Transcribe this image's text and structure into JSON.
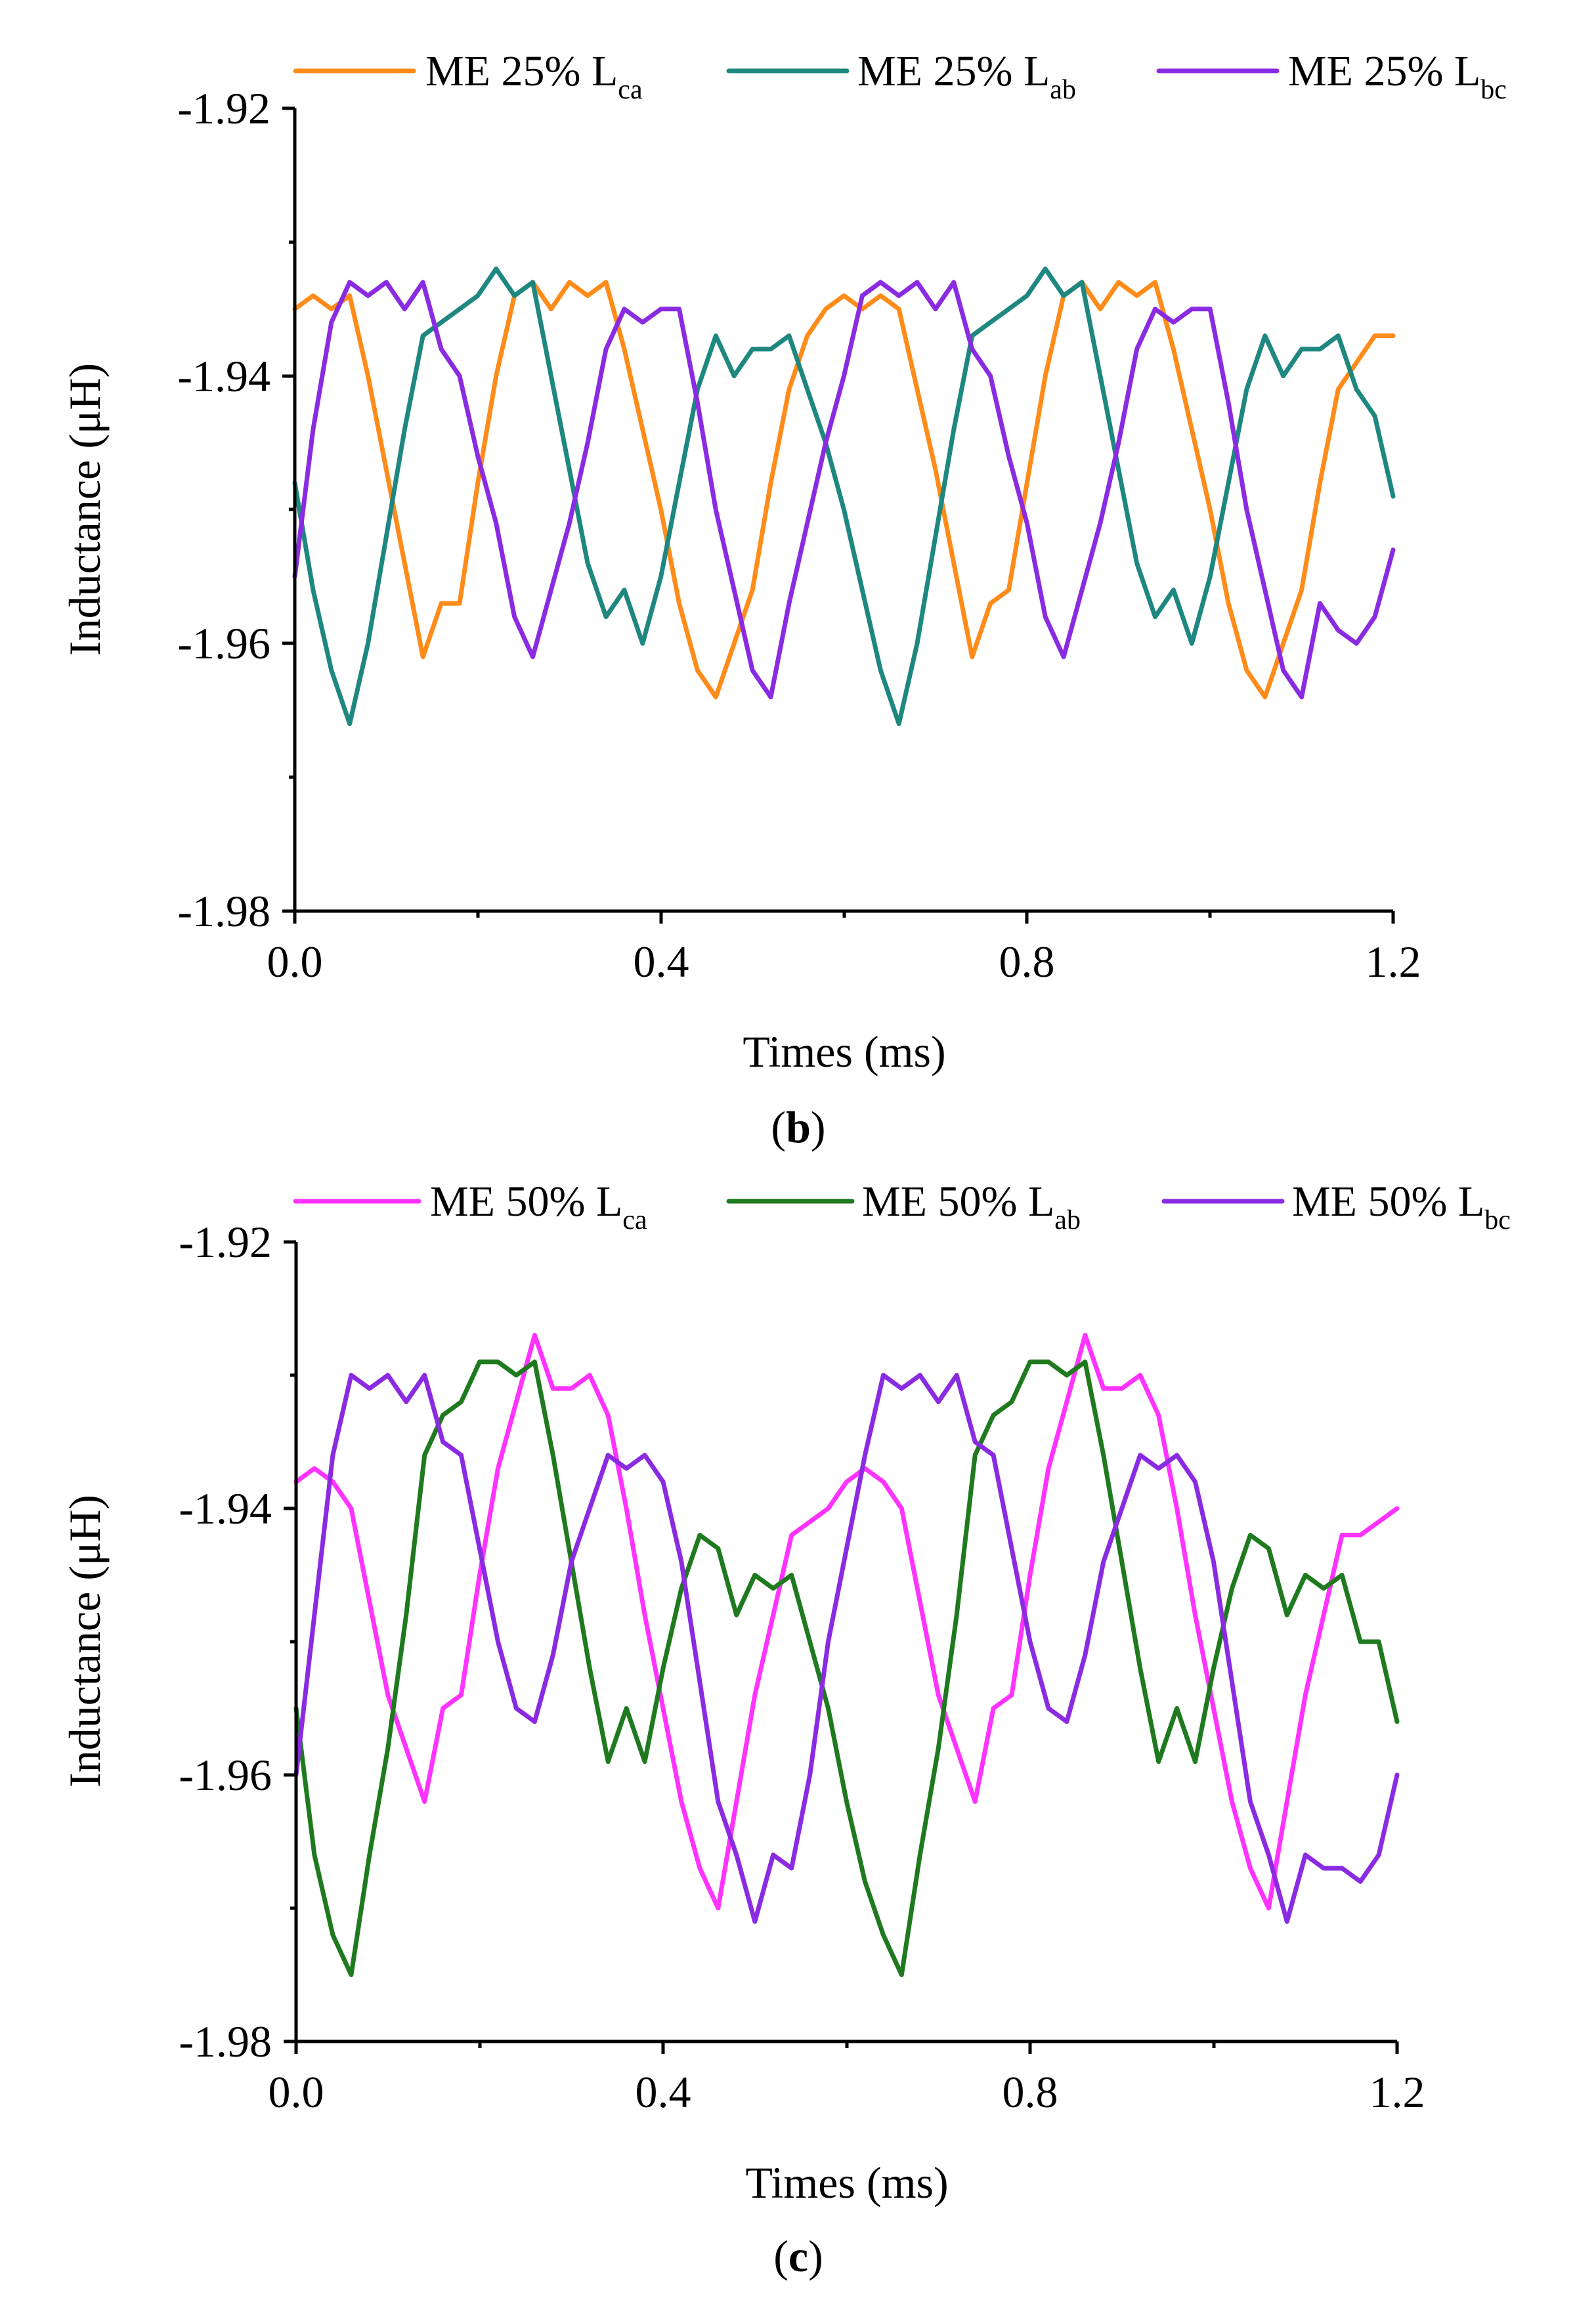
{
  "chart_data": [
    {
      "type": "line",
      "panel_caption": "b",
      "xlabel": "Times (ms)",
      "ylabel": "Inductance (μH)",
      "xlim": [
        0.0,
        1.2
      ],
      "ylim": [
        -1.98,
        -1.92
      ],
      "xticks": [
        0.0,
        0.4,
        0.8,
        1.2
      ],
      "xtick_labels": [
        "0.0",
        "0.4",
        "0.8",
        "1.2"
      ],
      "yticks": [
        -1.92,
        -1.94,
        -1.96,
        -1.98
      ],
      "ytick_labels": [
        "-1.92",
        "-1.94",
        "-1.96",
        "-1.98"
      ],
      "legend_position": "top",
      "series": [
        {
          "label": "ME 25% L",
          "subscript": "ca",
          "color": "#FF8C1A",
          "x": [
            0,
            0.02,
            0.04,
            0.06,
            0.08,
            0.1,
            0.12,
            0.14,
            0.16,
            0.18,
            0.2,
            0.22,
            0.24,
            0.26,
            0.28,
            0.3,
            0.32,
            0.34,
            0.36,
            0.38,
            0.4,
            0.42,
            0.44,
            0.46,
            0.48,
            0.5,
            0.52,
            0.54,
            0.56,
            0.58,
            0.6,
            0.62,
            0.64,
            0.66,
            0.68,
            0.7,
            0.72,
            0.74,
            0.76,
            0.78,
            0.8,
            0.82,
            0.84,
            0.86,
            0.88,
            0.9,
            0.92,
            0.94,
            0.96,
            0.98,
            1.0,
            1.02,
            1.04,
            1.06,
            1.08,
            1.1,
            1.12,
            1.14,
            1.16,
            1.18,
            1.2
          ],
          "y": [
            -1.935,
            -1.934,
            -1.935,
            -1.934,
            -1.94,
            -1.947,
            -1.954,
            -1.961,
            -1.957,
            -1.957,
            -1.948,
            -1.94,
            -1.934,
            -1.933,
            -1.935,
            -1.933,
            -1.934,
            -1.933,
            -1.938,
            -1.944,
            -1.95,
            -1.957,
            -1.962,
            -1.964,
            -1.96,
            -1.956,
            -1.948,
            -1.941,
            -1.937,
            -1.935,
            -1.934,
            -1.935,
            -1.934,
            -1.935,
            -1.941,
            -1.947,
            -1.954,
            -1.961,
            -1.957,
            -1.956,
            -1.948,
            -1.94,
            -1.934,
            -1.933,
            -1.935,
            -1.933,
            -1.934,
            -1.933,
            -1.938,
            -1.944,
            -1.95,
            -1.957,
            -1.962,
            -1.964,
            -1.96,
            -1.956,
            -1.948,
            -1.941,
            -1.939,
            -1.937,
            -1.937
          ]
        },
        {
          "label": "ME 25% L",
          "subscript": "ab",
          "color": "#1E8780",
          "x": [
            0,
            0.02,
            0.04,
            0.06,
            0.08,
            0.1,
            0.12,
            0.14,
            0.16,
            0.18,
            0.2,
            0.22,
            0.24,
            0.26,
            0.28,
            0.3,
            0.32,
            0.34,
            0.36,
            0.38,
            0.4,
            0.42,
            0.44,
            0.46,
            0.48,
            0.5,
            0.52,
            0.54,
            0.56,
            0.58,
            0.6,
            0.62,
            0.64,
            0.66,
            0.68,
            0.7,
            0.72,
            0.74,
            0.76,
            0.78,
            0.8,
            0.82,
            0.84,
            0.86,
            0.88,
            0.9,
            0.92,
            0.94,
            0.96,
            0.98,
            1.0,
            1.02,
            1.04,
            1.06,
            1.08,
            1.1,
            1.12,
            1.14,
            1.16,
            1.18,
            1.2
          ],
          "y": [
            -1.948,
            -1.956,
            -1.962,
            -1.966,
            -1.96,
            -1.952,
            -1.944,
            -1.937,
            -1.936,
            -1.935,
            -1.934,
            -1.932,
            -1.934,
            -1.933,
            -1.94,
            -1.947,
            -1.954,
            -1.958,
            -1.956,
            -1.96,
            -1.955,
            -1.948,
            -1.941,
            -1.937,
            -1.94,
            -1.938,
            -1.938,
            -1.937,
            -1.941,
            -1.945,
            -1.95,
            -1.956,
            -1.962,
            -1.966,
            -1.96,
            -1.952,
            -1.944,
            -1.937,
            -1.936,
            -1.935,
            -1.934,
            -1.932,
            -1.934,
            -1.933,
            -1.94,
            -1.947,
            -1.954,
            -1.958,
            -1.956,
            -1.96,
            -1.955,
            -1.948,
            -1.941,
            -1.937,
            -1.94,
            -1.938,
            -1.938,
            -1.937,
            -1.941,
            -1.943,
            -1.949
          ]
        },
        {
          "label": "ME 25% L",
          "subscript": "bc",
          "color": "#8A2BE2",
          "x": [
            0,
            0.02,
            0.04,
            0.06,
            0.08,
            0.1,
            0.12,
            0.14,
            0.16,
            0.18,
            0.2,
            0.22,
            0.24,
            0.26,
            0.28,
            0.3,
            0.32,
            0.34,
            0.36,
            0.38,
            0.4,
            0.42,
            0.44,
            0.46,
            0.48,
            0.5,
            0.52,
            0.54,
            0.56,
            0.58,
            0.6,
            0.62,
            0.64,
            0.66,
            0.68,
            0.7,
            0.72,
            0.74,
            0.76,
            0.78,
            0.8,
            0.82,
            0.84,
            0.86,
            0.88,
            0.9,
            0.92,
            0.94,
            0.96,
            0.98,
            1.0,
            1.02,
            1.04,
            1.06,
            1.08,
            1.1,
            1.12,
            1.14,
            1.16,
            1.18,
            1.2
          ],
          "y": [
            -1.955,
            -1.944,
            -1.936,
            -1.933,
            -1.934,
            -1.933,
            -1.935,
            -1.933,
            -1.938,
            -1.94,
            -1.946,
            -1.951,
            -1.958,
            -1.961,
            -1.956,
            -1.951,
            -1.945,
            -1.938,
            -1.935,
            -1.936,
            -1.935,
            -1.935,
            -1.942,
            -1.95,
            -1.956,
            -1.962,
            -1.964,
            -1.957,
            -1.951,
            -1.945,
            -1.94,
            -1.934,
            -1.933,
            -1.934,
            -1.933,
            -1.935,
            -1.933,
            -1.938,
            -1.94,
            -1.946,
            -1.951,
            -1.958,
            -1.961,
            -1.956,
            -1.951,
            -1.945,
            -1.938,
            -1.935,
            -1.936,
            -1.935,
            -1.935,
            -1.942,
            -1.95,
            -1.956,
            -1.962,
            -1.964,
            -1.957,
            -1.959,
            -1.96,
            -1.958,
            -1.953
          ]
        }
      ]
    },
    {
      "type": "line",
      "panel_caption": "c",
      "xlabel": "Times (ms)",
      "ylabel": "Inductance (μH)",
      "xlim": [
        0.0,
        1.2
      ],
      "ylim": [
        -1.98,
        -1.92
      ],
      "xticks": [
        0.0,
        0.4,
        0.8,
        1.2
      ],
      "xtick_labels": [
        "0.0",
        "0.4",
        "0.8",
        "1.2"
      ],
      "yticks": [
        -1.92,
        -1.94,
        -1.96,
        -1.98
      ],
      "ytick_labels": [
        "-1.92",
        "-1.94",
        "-1.96",
        "-1.98"
      ],
      "legend_position": "top",
      "series": [
        {
          "label": "ME 50% L",
          "subscript": "ca",
          "color": "#FF33FF",
          "x": [
            0,
            0.02,
            0.04,
            0.06,
            0.08,
            0.1,
            0.12,
            0.14,
            0.16,
            0.18,
            0.2,
            0.22,
            0.24,
            0.26,
            0.28,
            0.3,
            0.32,
            0.34,
            0.36,
            0.38,
            0.4,
            0.42,
            0.44,
            0.46,
            0.48,
            0.5,
            0.52,
            0.54,
            0.56,
            0.58,
            0.6,
            0.62,
            0.64,
            0.66,
            0.68,
            0.7,
            0.72,
            0.74,
            0.76,
            0.78,
            0.8,
            0.82,
            0.84,
            0.86,
            0.88,
            0.9,
            0.92,
            0.94,
            0.96,
            0.98,
            1.0,
            1.02,
            1.04,
            1.06,
            1.08,
            1.1,
            1.12,
            1.14,
            1.16,
            1.18,
            1.2
          ],
          "y": [
            -1.938,
            -1.937,
            -1.938,
            -1.94,
            -1.947,
            -1.954,
            -1.958,
            -1.962,
            -1.955,
            -1.954,
            -1.945,
            -1.937,
            -1.932,
            -1.927,
            -1.931,
            -1.931,
            -1.93,
            -1.933,
            -1.94,
            -1.948,
            -1.955,
            -1.962,
            -1.967,
            -1.97,
            -1.962,
            -1.954,
            -1.948,
            -1.942,
            -1.941,
            -1.94,
            -1.938,
            -1.937,
            -1.938,
            -1.94,
            -1.947,
            -1.954,
            -1.958,
            -1.962,
            -1.955,
            -1.954,
            -1.945,
            -1.937,
            -1.932,
            -1.927,
            -1.931,
            -1.931,
            -1.93,
            -1.933,
            -1.94,
            -1.948,
            -1.955,
            -1.962,
            -1.967,
            -1.97,
            -1.962,
            -1.954,
            -1.948,
            -1.942,
            -1.942,
            -1.941,
            -1.94
          ]
        },
        {
          "label": "ME 50% L",
          "subscript": "ab",
          "color": "#1F7A1F",
          "x": [
            0,
            0.02,
            0.04,
            0.06,
            0.08,
            0.1,
            0.12,
            0.14,
            0.16,
            0.18,
            0.2,
            0.22,
            0.24,
            0.26,
            0.28,
            0.3,
            0.32,
            0.34,
            0.36,
            0.38,
            0.4,
            0.42,
            0.44,
            0.46,
            0.48,
            0.5,
            0.52,
            0.54,
            0.56,
            0.58,
            0.6,
            0.62,
            0.64,
            0.66,
            0.68,
            0.7,
            0.72,
            0.74,
            0.76,
            0.78,
            0.8,
            0.82,
            0.84,
            0.86,
            0.88,
            0.9,
            0.92,
            0.94,
            0.96,
            0.98,
            1.0,
            1.02,
            1.04,
            1.06,
            1.08,
            1.1,
            1.12,
            1.14,
            1.16,
            1.18,
            1.2
          ],
          "y": [
            -1.955,
            -1.966,
            -1.972,
            -1.975,
            -1.966,
            -1.958,
            -1.948,
            -1.936,
            -1.933,
            -1.932,
            -1.929,
            -1.929,
            -1.93,
            -1.929,
            -1.936,
            -1.944,
            -1.952,
            -1.959,
            -1.955,
            -1.959,
            -1.952,
            -1.946,
            -1.942,
            -1.943,
            -1.948,
            -1.945,
            -1.946,
            -1.945,
            -1.95,
            -1.955,
            -1.962,
            -1.968,
            -1.972,
            -1.975,
            -1.966,
            -1.958,
            -1.948,
            -1.936,
            -1.933,
            -1.932,
            -1.929,
            -1.929,
            -1.93,
            -1.929,
            -1.936,
            -1.944,
            -1.952,
            -1.959,
            -1.955,
            -1.959,
            -1.952,
            -1.946,
            -1.942,
            -1.943,
            -1.948,
            -1.945,
            -1.946,
            -1.945,
            -1.95,
            -1.95,
            -1.956
          ]
        },
        {
          "label": "ME 50% L",
          "subscript": "bc",
          "color": "#8A2BE2",
          "x": [
            0,
            0.02,
            0.04,
            0.06,
            0.08,
            0.1,
            0.12,
            0.14,
            0.16,
            0.18,
            0.2,
            0.22,
            0.24,
            0.26,
            0.28,
            0.3,
            0.32,
            0.34,
            0.36,
            0.38,
            0.4,
            0.42,
            0.44,
            0.46,
            0.48,
            0.5,
            0.52,
            0.54,
            0.56,
            0.58,
            0.6,
            0.62,
            0.64,
            0.66,
            0.68,
            0.7,
            0.72,
            0.74,
            0.76,
            0.78,
            0.8,
            0.82,
            0.84,
            0.86,
            0.88,
            0.9,
            0.92,
            0.94,
            0.96,
            0.98,
            1.0,
            1.02,
            1.04,
            1.06,
            1.08,
            1.1,
            1.12,
            1.14,
            1.16,
            1.18,
            1.2
          ],
          "y": [
            -1.96,
            -1.948,
            -1.936,
            -1.93,
            -1.931,
            -1.93,
            -1.932,
            -1.93,
            -1.935,
            -1.936,
            -1.943,
            -1.95,
            -1.955,
            -1.956,
            -1.951,
            -1.944,
            -1.94,
            -1.936,
            -1.937,
            -1.936,
            -1.938,
            -1.944,
            -1.953,
            -1.962,
            -1.966,
            -1.971,
            -1.966,
            -1.967,
            -1.96,
            -1.95,
            -1.943,
            -1.936,
            -1.93,
            -1.931,
            -1.93,
            -1.932,
            -1.93,
            -1.935,
            -1.936,
            -1.943,
            -1.95,
            -1.955,
            -1.956,
            -1.951,
            -1.944,
            -1.94,
            -1.936,
            -1.937,
            -1.936,
            -1.938,
            -1.944,
            -1.953,
            -1.962,
            -1.966,
            -1.971,
            -1.966,
            -1.967,
            -1.967,
            -1.968,
            -1.966,
            -1.96
          ]
        }
      ]
    }
  ]
}
